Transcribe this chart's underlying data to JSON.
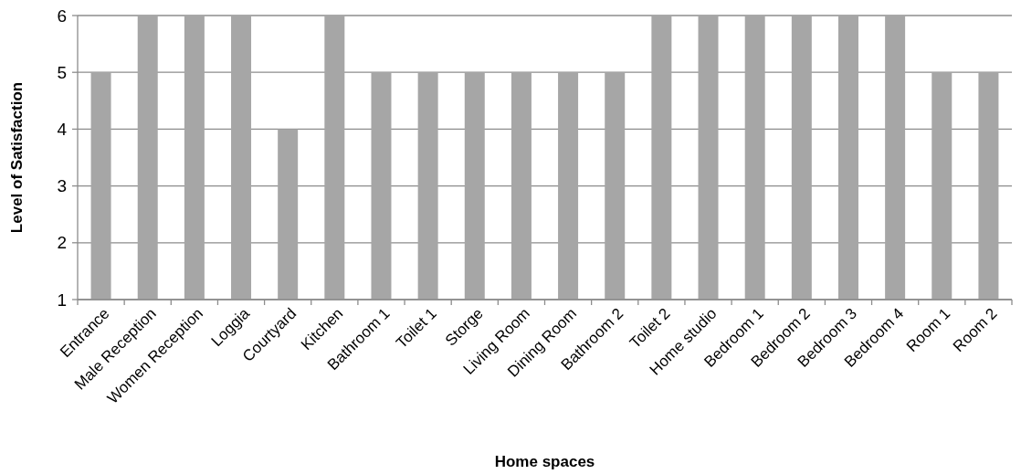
{
  "chart_data": {
    "type": "bar",
    "xlabel": "Home spaces",
    "ylabel": "Level of Satisfaction",
    "categories": [
      "Entrance",
      "Male Reception",
      "Women Reception",
      "Loggia",
      "Courtyard",
      "Kitchen",
      "Bathroom  1",
      "Toilet 1",
      "Storge",
      "Living Room",
      "Dining Room",
      "Bathroom  2",
      "Toilet 2",
      "Home studio",
      "Bedroom  1",
      "Bedroom  2",
      "Bedroom  3",
      "Bedroom  4",
      "Room 1",
      "Room 2"
    ],
    "values": [
      5,
      6,
      6,
      6,
      4,
      6,
      5,
      5,
      5,
      5,
      5,
      5,
      6,
      6,
      6,
      6,
      6,
      6,
      5,
      5
    ],
    "color": "#a6a6a6",
    "ylim": [
      1,
      6
    ],
    "yticks": [
      1,
      2,
      3,
      4,
      5,
      6
    ],
    "grid": "y"
  }
}
